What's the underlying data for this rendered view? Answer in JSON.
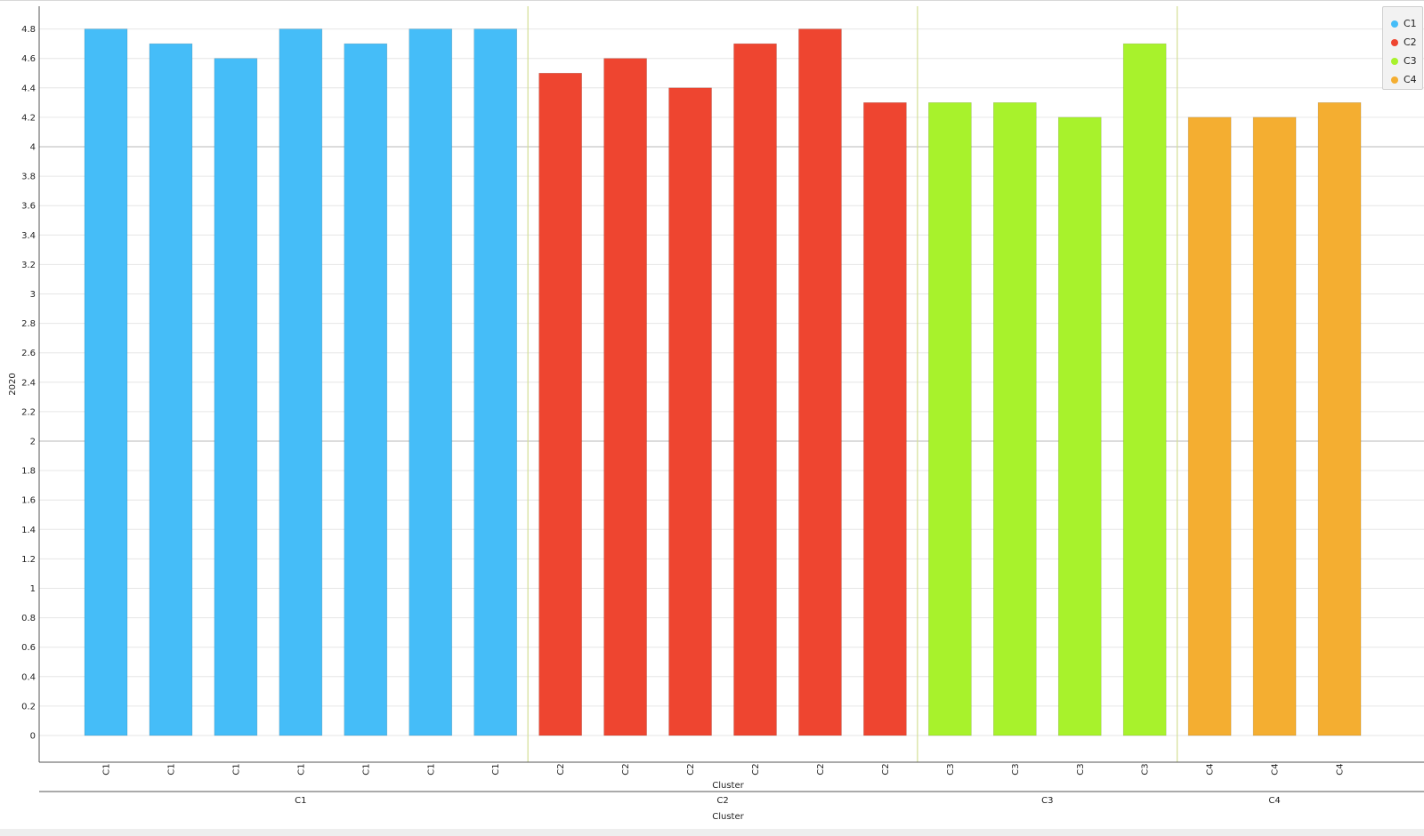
{
  "chart_data": {
    "type": "bar",
    "ylabel": "2020",
    "xlabel": "Cluster",
    "group_axis_label": "Cluster",
    "ylim": [
      0,
      4.9
    ],
    "yticks": [
      "0",
      "0.2",
      "0.4",
      "0.6",
      "0.8",
      "1",
      "1.2",
      "1.4",
      "1.6",
      "1.8",
      "2",
      "2.2",
      "2.4",
      "2.6",
      "2.8",
      "3",
      "3.2",
      "3.4",
      "3.6",
      "3.8",
      "4",
      "4.2",
      "4.4",
      "4.6",
      "4.8"
    ],
    "grid": true,
    "legend_position": "top-right",
    "series": [
      {
        "name": "C1",
        "color": "#45bdf8",
        "values": [
          4.8,
          4.7,
          4.6,
          4.8,
          4.7,
          4.8,
          4.8
        ]
      },
      {
        "name": "C2",
        "color": "#ee4530",
        "values": [
          4.5,
          4.6,
          4.4,
          4.7,
          4.8,
          4.3
        ]
      },
      {
        "name": "C3",
        "color": "#a8f22c",
        "values": [
          4.3,
          4.3,
          4.2,
          4.7
        ]
      },
      {
        "name": "C4",
        "color": "#f4ae31",
        "values": [
          4.2,
          4.2,
          4.3
        ]
      }
    ],
    "groups": [
      "C1",
      "C2",
      "C3",
      "C4"
    ]
  }
}
